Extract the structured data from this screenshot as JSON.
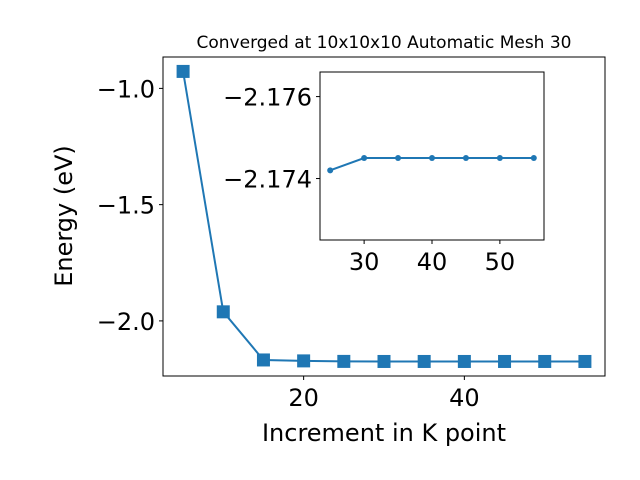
{
  "chart_data": [
    {
      "type": "line",
      "title": "Converged at 10x10x10 Automatic Mesh 30",
      "x_label": "Increment in K point",
      "y_label": "Energy (eV)",
      "x": [
        5,
        10,
        15,
        20,
        25,
        30,
        35,
        40,
        45,
        50,
        55
      ],
      "series": [
        {
          "color": "#1f77b4",
          "marker": "square",
          "values": [
            -0.927,
            -1.961,
            -2.168,
            -2.172,
            -2.1742,
            -2.1745,
            -2.1745,
            -2.1745,
            -2.1745,
            -2.1745,
            -2.1745
          ]
        }
      ],
      "xlim": [
        2.5,
        57.5
      ],
      "xticks": [
        20,
        40
      ],
      "ylim": [
        -2.237,
        -0.865
      ],
      "yticks": [
        {
          "value": -2.0,
          "label": "−2.0"
        },
        {
          "value": -1.5,
          "label": "−1.5"
        },
        {
          "value": -1.0,
          "label": "−1.0"
        }
      ]
    },
    {
      "type": "line",
      "x": [
        25,
        30,
        35,
        40,
        45,
        50,
        55
      ],
      "series": [
        {
          "color": "#1f77b4",
          "marker": "circle",
          "values": [
            -2.1742,
            -2.1745,
            -2.1745,
            -2.1745,
            -2.1745,
            -2.1745,
            -2.1745
          ]
        }
      ],
      "xlim": [
        23.5,
        56.5
      ],
      "xticks": [
        30,
        40,
        50
      ],
      "ylim": [
        -2.1725,
        -2.1766
      ],
      "yticks": [
        {
          "value": -2.174,
          "label": "−2.174"
        },
        {
          "value": -2.176,
          "label": "−2.176"
        }
      ]
    }
  ]
}
